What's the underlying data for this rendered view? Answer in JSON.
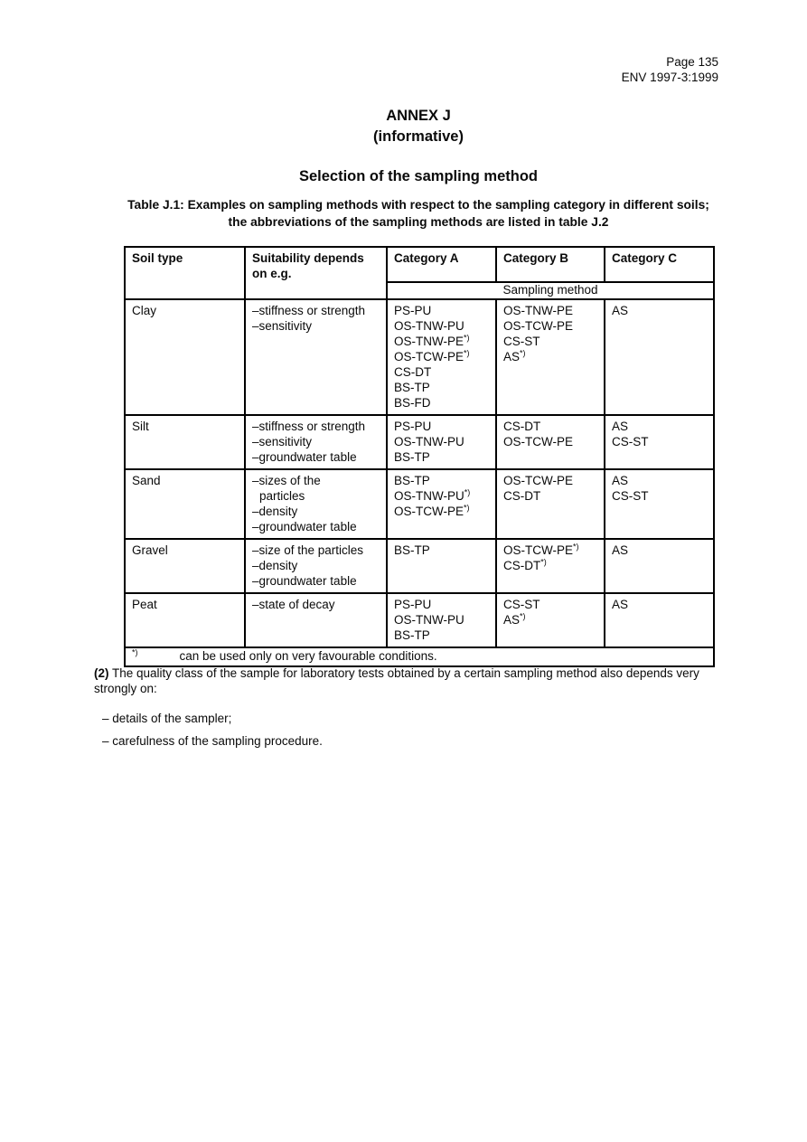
{
  "page_header": {
    "page_number": "Page 135",
    "standard_ref": "ENV 1997-3:1999"
  },
  "annex": {
    "title": "ANNEX J",
    "subtitle": "(informative)",
    "section_title": "Selection of the sampling method"
  },
  "table": {
    "caption": "Table J.1: Examples on sampling methods with respect to the sampling category in different soils; the abbreviations of the sampling methods are listed in table J.2",
    "columns": [
      "Soil type",
      "Suitability depends on e.g.",
      "Category A",
      "Category B",
      "Category C"
    ],
    "subheader": "Sampling method",
    "rows": [
      {
        "soil": "Clay",
        "suitability": [
          "–stiffness or strength",
          "–sensitivity"
        ],
        "category_a": [
          "PS-PU",
          "OS-TNW-PU",
          "OS-TNW-PE*)",
          "OS-TCW-PE*)",
          "CS-DT",
          "BS-TP",
          "BS-FD"
        ],
        "category_b": [
          "OS-TNW-PE",
          "OS-TCW-PE",
          "CS-ST",
          "AS*)"
        ],
        "category_c": [
          "AS"
        ]
      },
      {
        "soil": "Silt",
        "suitability": [
          "–stiffness or strength",
          "–sensitivity",
          "–groundwater table"
        ],
        "category_a": [
          "PS-PU",
          "OS-TNW-PU",
          "BS-TP"
        ],
        "category_b": [
          "CS-DT",
          "OS-TCW-PE"
        ],
        "category_c": [
          "AS",
          "CS-ST"
        ]
      },
      {
        "soil": "Sand",
        "suitability": [
          "–sizes of the",
          "particles",
          "–density",
          "–groundwater table"
        ],
        "category_a": [
          "BS-TP",
          "OS-TNW-PU*)",
          "OS-TCW-PE*)"
        ],
        "category_b": [
          "OS-TCW-PE",
          "CS-DT"
        ],
        "category_c": [
          "AS",
          "CS-ST"
        ]
      },
      {
        "soil": "Gravel",
        "suitability": [
          "–size of the particles",
          "–density",
          "–groundwater table"
        ],
        "category_a": [
          "BS-TP"
        ],
        "category_b": [
          "OS-TCW-PE*)",
          "CS-DT*)"
        ],
        "category_c": [
          "AS"
        ]
      },
      {
        "soil": "Peat",
        "suitability": [
          "–state of decay"
        ],
        "category_a": [
          "PS-PU",
          "OS-TNW-PU",
          "BS-TP"
        ],
        "category_b": [
          "CS-ST",
          "AS*)"
        ],
        "category_c": [
          "AS"
        ]
      }
    ],
    "footnote": {
      "marker": "*)",
      "text": "can be used only on very favourable conditions."
    }
  },
  "paragraph2": {
    "label": "(2)",
    "text": "The quality class of the sample for laboratory tests obtained by a certain sampling method also depends very strongly on:"
  },
  "bullets": [
    "– details of the sampler;",
    "– carefulness of the sampling procedure."
  ]
}
